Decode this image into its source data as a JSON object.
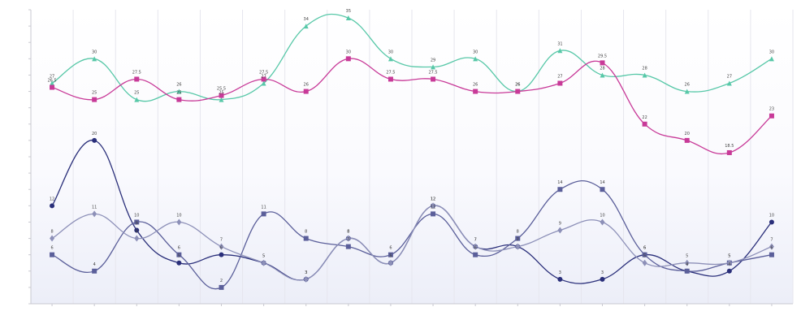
{
  "chart_data": {
    "type": "line",
    "title": "",
    "xlabel": "",
    "ylabel": "",
    "categories": [
      "",
      "",
      "",
      "",
      "",
      "",
      "",
      "",
      "",
      "",
      "",
      "",
      "",
      "",
      "",
      "",
      "",
      ""
    ],
    "ylim": [
      0,
      36
    ],
    "grid": true,
    "smooth": true,
    "series": [
      {
        "color": "#58c8a8",
        "marker": "triangle",
        "values": [
          27,
          30,
          25,
          26,
          25,
          27,
          34,
          35,
          30,
          29,
          30,
          26,
          31,
          28,
          28,
          26,
          27,
          30
        ]
      },
      {
        "color": "#c83a98",
        "marker": "square",
        "values": [
          26.5,
          25,
          27.5,
          25,
          25.5,
          27.5,
          26,
          30,
          27.5,
          27.5,
          26,
          26,
          27,
          29.5,
          22,
          20,
          18.5,
          23
        ]
      },
      {
        "color": "#2a2f7a",
        "marker": "circle",
        "values": [
          12,
          20,
          9,
          5,
          6,
          5,
          3,
          8,
          5,
          12,
          7,
          7,
          3,
          3,
          6,
          4,
          4,
          10
        ]
      },
      {
        "color": "#5b5f9a",
        "marker": "square",
        "values": [
          6,
          4,
          10,
          6,
          2,
          11,
          8,
          7,
          6,
          11,
          6,
          8,
          14,
          14,
          6,
          4,
          5,
          6
        ]
      },
      {
        "color": "#8d90b8",
        "marker": "diamond",
        "values": [
          8,
          11,
          8,
          10,
          7,
          5,
          3,
          8,
          5,
          12,
          7,
          7,
          9,
          10,
          5,
          5,
          5,
          7
        ]
      }
    ]
  }
}
